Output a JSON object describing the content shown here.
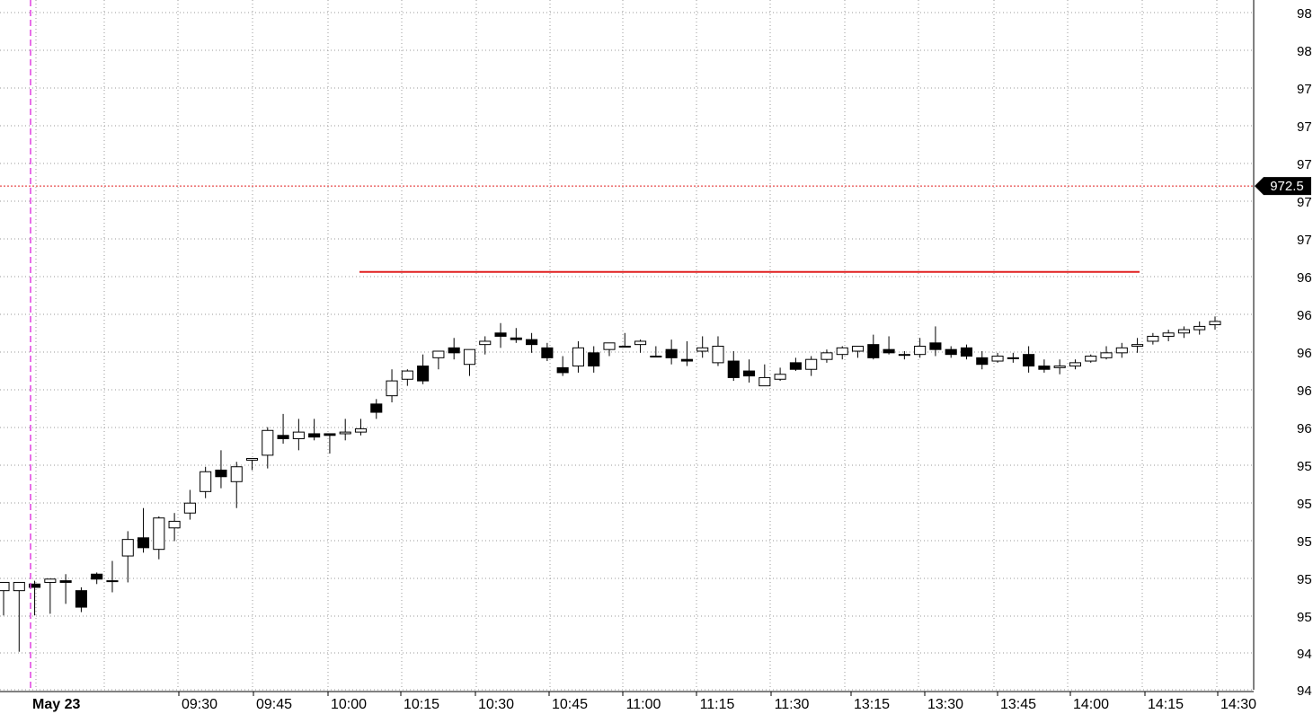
{
  "chart_data": {
    "type": "candlestick",
    "title": "",
    "date_label": "May 23",
    "x_tick_labels": [
      "09:30",
      "09:45",
      "10:00",
      "10:15",
      "10:30",
      "10:45",
      "11:00",
      "11:15",
      "11:30",
      "13:15",
      "13:30",
      "13:45",
      "14:00",
      "14:15",
      "14:30"
    ],
    "y_tick_labels": [
      "98",
      "98",
      "97",
      "97",
      "97",
      "97",
      "97",
      "96",
      "96",
      "96",
      "96",
      "96",
      "95",
      "95",
      "95",
      "95",
      "95",
      "94",
      "94"
    ],
    "y_range": [
      942.0,
      983.0
    ],
    "y_tick_step": 2.5,
    "grid": true,
    "last_price": {
      "label": "972.5",
      "value": 972.5
    },
    "resistance_line": {
      "value": 967.3,
      "color": "#e02020"
    },
    "colors": {
      "up": "#ffffff",
      "down": "#000000",
      "wick": "#000000",
      "grid": "#9a9a9a",
      "session_marker": "#e040e0",
      "price_line": "#e02020"
    },
    "candles": [
      [
        948,
        948.5,
        946,
        946.5
      ],
      [
        948,
        948.5,
        948.4,
        944.3
      ],
      [
        948.4,
        948.2,
        948.6,
        946.5
      ],
      [
        948.5,
        948.7,
        948.7,
        946.6
      ],
      [
        948.6,
        948.5,
        949.0,
        947.2
      ],
      [
        948.0,
        947.0,
        948.2,
        946.7
      ],
      [
        949.0,
        948.7,
        949.1,
        948.4
      ],
      [
        948.6,
        948.6,
        949.8,
        947.9
      ],
      [
        950.1,
        951.1,
        951.6,
        948.5
      ],
      [
        951.2,
        950.6,
        953.0,
        950.3
      ],
      [
        950.5,
        952.4,
        952.5,
        949.9
      ],
      [
        951.8,
        952.2,
        952.7,
        951.0
      ],
      [
        952.7,
        953.3,
        954.1,
        952.3
      ],
      [
        954.0,
        955.2,
        955.5,
        953.6
      ],
      [
        955.3,
        954.9,
        956.5,
        954.2
      ],
      [
        954.6,
        955.5,
        955.8,
        953.0
      ],
      [
        955.9,
        956.0,
        956.0,
        955.3
      ],
      [
        956.2,
        957.7,
        957.9,
        955.4
      ],
      [
        957.4,
        957.2,
        958.7,
        956.9
      ],
      [
        957.2,
        957.6,
        958.4,
        956.5
      ],
      [
        957.5,
        957.3,
        958.4,
        957.1
      ],
      [
        957.5,
        957.4,
        957.4,
        956.3
      ],
      [
        957.5,
        957.6,
        958.4,
        957.1
      ],
      [
        957.6,
        957.8,
        958.4,
        957.4
      ],
      [
        959.3,
        958.8,
        959.6,
        958.4
      ],
      [
        959.8,
        960.7,
        961.4,
        959.4
      ],
      [
        960.8,
        961.3,
        961.4,
        960.4
      ],
      [
        961.6,
        960.7,
        962.3,
        960.5
      ],
      [
        962.1,
        962.5,
        962.5,
        961.4
      ],
      [
        962.7,
        962.4,
        963.3,
        962.0
      ],
      [
        961.7,
        962.6,
        962.6,
        961.0
      ],
      [
        962.9,
        963.1,
        963.4,
        962.3
      ],
      [
        963.6,
        963.4,
        964.2,
        962.7
      ],
      [
        963.3,
        963.2,
        963.9,
        963.0
      ],
      [
        963.2,
        962.9,
        963.6,
        962.4
      ],
      [
        962.7,
        962.1,
        963.0,
        961.9
      ],
      [
        961.5,
        961.2,
        962.2,
        961.0
      ],
      [
        961.6,
        962.7,
        963.1,
        961.2
      ],
      [
        962.4,
        961.6,
        962.8,
        961.2
      ],
      [
        962.6,
        963.0,
        963.0,
        962.2
      ],
      [
        962.8,
        962.8,
        963.6,
        962.8
      ],
      [
        962.9,
        963.1,
        963.2,
        962.4
      ],
      [
        962.2,
        962.2,
        962.8,
        962.2
      ],
      [
        962.6,
        962.1,
        963.2,
        961.7
      ],
      [
        962.0,
        961.9,
        963.1,
        961.6
      ],
      [
        962.5,
        962.7,
        963.4,
        962.1
      ],
      [
        961.8,
        962.8,
        963.4,
        961.6
      ],
      [
        961.9,
        960.9,
        962.5,
        960.7
      ],
      [
        961.3,
        961.0,
        962.0,
        960.6
      ],
      [
        960.4,
        960.9,
        961.7,
        960.4
      ],
      [
        960.8,
        961.1,
        961.5,
        960.7
      ],
      [
        961.8,
        961.4,
        962.1,
        961.3
      ],
      [
        961.4,
        962.0,
        962.2,
        961.0
      ],
      [
        962.0,
        962.4,
        962.6,
        961.8
      ],
      [
        962.3,
        962.7,
        962.8,
        962.0
      ],
      [
        962.5,
        962.8,
        962.8,
        962.1
      ],
      [
        962.9,
        962.1,
        963.5,
        962.0
      ],
      [
        962.6,
        962.4,
        963.4,
        962.3
      ],
      [
        962.3,
        962.3,
        962.5,
        962.0
      ],
      [
        962.3,
        962.8,
        963.3,
        962.1
      ],
      [
        963.0,
        962.6,
        964.0,
        962.2
      ],
      [
        962.6,
        962.3,
        962.8,
        962.1
      ],
      [
        962.7,
        962.2,
        962.9,
        962.0
      ],
      [
        962.1,
        961.7,
        962.5,
        961.4
      ],
      [
        961.9,
        962.2,
        962.4,
        961.8
      ],
      [
        962.1,
        962.1,
        962.4,
        961.8
      ],
      [
        962.3,
        961.6,
        962.8,
        961.2
      ],
      [
        961.6,
        961.4,
        962.0,
        961.2
      ],
      [
        961.5,
        961.6,
        962.0,
        961.1
      ],
      [
        961.6,
        961.8,
        962.0,
        961.4
      ],
      [
        961.9,
        962.2,
        962.3,
        961.8
      ],
      [
        962.1,
        962.4,
        962.8,
        962.0
      ],
      [
        962.4,
        962.7,
        963.0,
        962.1
      ],
      [
        962.8,
        962.9,
        963.3,
        962.4
      ],
      [
        963.1,
        963.4,
        963.6,
        962.9
      ],
      [
        963.4,
        963.6,
        963.8,
        963.1
      ],
      [
        963.6,
        963.8,
        964.0,
        963.3
      ],
      [
        963.8,
        964.0,
        964.3,
        963.5
      ],
      [
        964.1,
        964.3,
        964.6,
        963.8
      ]
    ],
    "note": ""
  }
}
